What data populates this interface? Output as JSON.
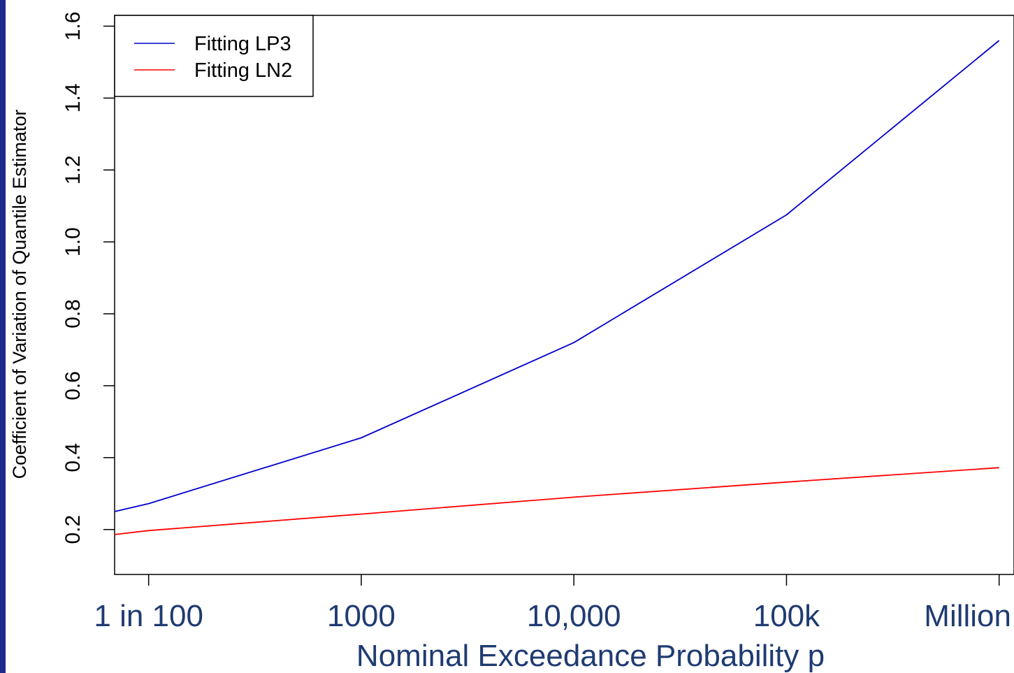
{
  "chart_data": {
    "type": "line",
    "xlabel": "Nominal Exceedance Probability p",
    "ylabel": "Coefficient of Variation of Quantile Estimator",
    "x_ticks": [
      {
        "pos": 2,
        "label": "1 in 100"
      },
      {
        "pos": 3,
        "label": "1000"
      },
      {
        "pos": 4,
        "label": "10,000"
      },
      {
        "pos": 5,
        "label": "100k"
      },
      {
        "pos": 6,
        "label": "Million"
      }
    ],
    "y_ticks": [
      "0.2",
      "0.4",
      "0.6",
      "0.8",
      "1.0",
      "1.2",
      "1.4",
      "1.6"
    ],
    "xlim": [
      1.84,
      6.07
    ],
    "ylim": [
      0.075,
      1.63
    ],
    "legend_position": "top-left",
    "grid": false,
    "series": [
      {
        "name": "Fitting LP3",
        "color": "#0000cc",
        "x": [
          1.84,
          2,
          3,
          4,
          5,
          6
        ],
        "y": [
          0.25,
          0.272,
          0.455,
          0.72,
          1.075,
          1.56
        ]
      },
      {
        "name": "Fitting LN2",
        "color": "#ff0000",
        "x": [
          1.84,
          2,
          3,
          4,
          5,
          6
        ],
        "y": [
          0.186,
          0.197,
          0.243,
          0.29,
          0.332,
          0.372
        ]
      }
    ]
  }
}
